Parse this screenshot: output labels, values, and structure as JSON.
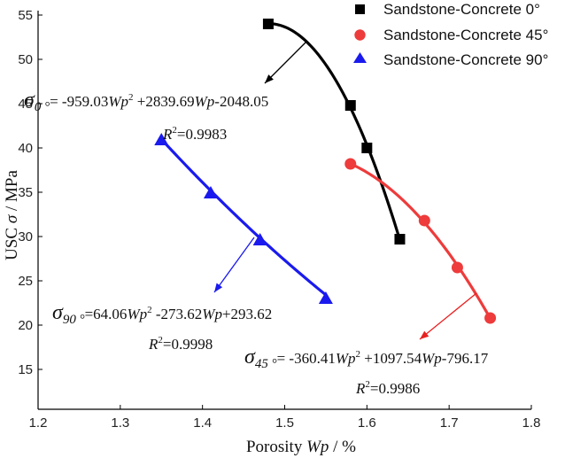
{
  "chart_data": {
    "type": "scatter",
    "xlabel_text": "Porosity ",
    "xlabel_var": "Wp",
    "xlabel_unit": " / %",
    "ylabel_text": "USC ",
    "ylabel_var": "σ",
    "ylabel_unit": " / MPa",
    "xlim": [
      1.2,
      1.8
    ],
    "ylim": [
      10.5,
      55.5
    ],
    "xticks": [
      "1.2",
      "1.3",
      "1.4",
      "1.5",
      "1.6",
      "1.7",
      "1.8"
    ],
    "yticks": [
      "15",
      "20",
      "25",
      "30",
      "35",
      "40",
      "45",
      "50",
      "55"
    ],
    "series": [
      {
        "name": "Sandstone-Concrete 0°",
        "marker": "square",
        "color": "#000000",
        "arrow_color": "#000000",
        "points": [
          [
            1.48,
            54.0
          ],
          [
            1.58,
            44.8
          ],
          [
            1.6,
            40.0
          ],
          [
            1.64,
            29.7
          ]
        ],
        "fit": {
          "a": -959.03,
          "b": 2839.69,
          "c": -2048.05,
          "x_range": [
            1.48,
            1.64
          ]
        },
        "equation": {
          "symbol": "σ",
          "subscript": "0 °",
          "prefix": "= -959.03",
          "var1": "Wp",
          "power": "2",
          "mid": " +2839.69",
          "var2": "Wp",
          "suffix": "-2048.05",
          "r2_label": "R",
          "r2_power": "2",
          "r2_value": "=0.9983"
        }
      },
      {
        "name": "Sandstone-Concrete 45°",
        "marker": "circle",
        "color": "#ee3b3b",
        "arrow_color": "#e82020",
        "points": [
          [
            1.58,
            38.2
          ],
          [
            1.67,
            31.8
          ],
          [
            1.71,
            26.5
          ],
          [
            1.75,
            20.8
          ]
        ],
        "fit": {
          "a": -360.41,
          "b": 1097.54,
          "c": -796.17,
          "x_range": [
            1.58,
            1.75
          ]
        },
        "equation": {
          "symbol": "σ",
          "subscript": "45 °",
          "prefix": "= -360.41",
          "var1": "Wp",
          "power": "2",
          "mid": " +1097.54",
          "var2": "Wp",
          "suffix": "-796.17",
          "r2_label": "R",
          "r2_power": "2",
          "r2_value": "=0.9986"
        }
      },
      {
        "name": "Sandstone-Concrete 90°",
        "marker": "triangle",
        "color": "#1a1aee",
        "arrow_color": "#1a1aee",
        "points": [
          [
            1.35,
            40.9
          ],
          [
            1.41,
            34.9
          ],
          [
            1.47,
            29.6
          ],
          [
            1.55,
            23.0
          ]
        ],
        "fit": {
          "a": 64.06,
          "b": -273.62,
          "c": 293.62,
          "x_range": [
            1.35,
            1.55
          ]
        },
        "equation": {
          "symbol": "σ",
          "subscript": "90 °",
          "prefix": "=64.06",
          "var1": "Wp",
          "power": "2",
          "mid": " -273.62",
          "var2": "Wp",
          "suffix": "+293.62",
          "r2_label": "R",
          "r2_power": "2",
          "r2_value": "=0.9998"
        }
      }
    ]
  }
}
